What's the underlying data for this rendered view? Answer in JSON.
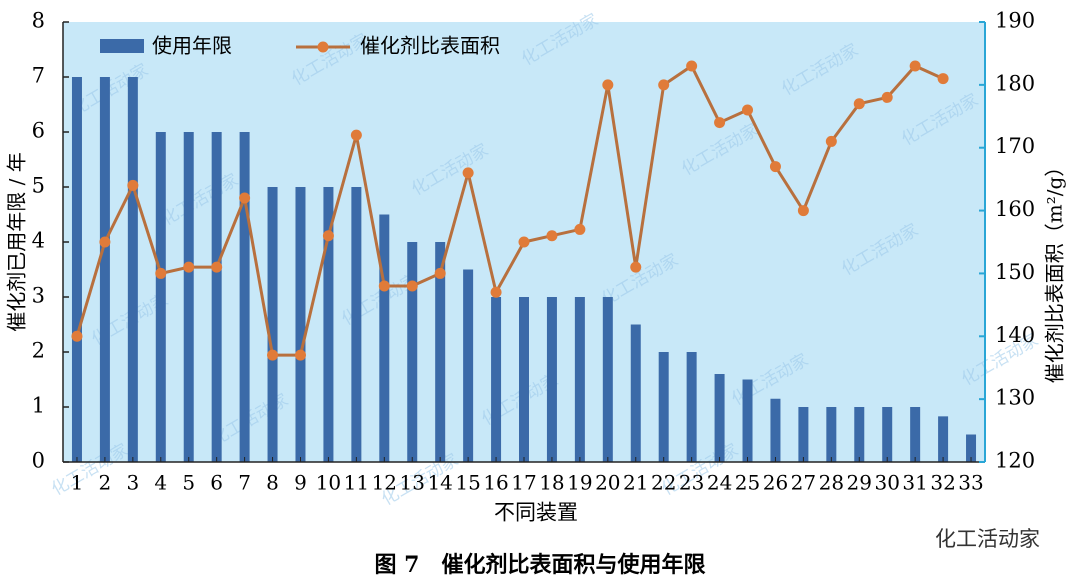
{
  "chart_data": {
    "type": "bar_line",
    "caption": "图 7　催化剂比表面积与使用年限",
    "x_label": "不同装置",
    "y_label": "催化剂已用年限 / 年",
    "y2_label": "催化剂比表面积（m²/g）",
    "categories": [
      "1",
      "2",
      "3",
      "4",
      "5",
      "6",
      "7",
      "8",
      "9",
      "10",
      "11",
      "12",
      "13",
      "14",
      "15",
      "16",
      "17",
      "18",
      "19",
      "20",
      "21",
      "22",
      "23",
      "24",
      "25",
      "26",
      "27",
      "28",
      "29",
      "30",
      "31",
      "32",
      "33"
    ],
    "series": [
      {
        "name": "使用年限",
        "type": "bar",
        "color": "#3b6aa8",
        "values": [
          7,
          7,
          7,
          6,
          6,
          6,
          6,
          5,
          5,
          5,
          5,
          4.5,
          4,
          4,
          3.5,
          3,
          3,
          3,
          3,
          3,
          2.5,
          2,
          2,
          1.6,
          1.5,
          1.15,
          1,
          1,
          1,
          1,
          1,
          0.83,
          0.5
        ]
      },
      {
        "name": "催化剂比表面积",
        "type": "line",
        "axis": "y2",
        "color": "#b8703e",
        "marker_color": "#e07b39",
        "values": [
          140,
          155,
          164,
          150,
          151,
          151,
          162,
          137,
          137,
          156,
          172,
          148,
          148,
          150,
          166,
          147,
          155,
          156,
          157,
          180,
          151,
          180,
          183,
          174,
          176,
          167,
          160,
          171,
          177,
          178,
          183,
          181,
          null
        ]
      }
    ],
    "ylim": [
      0,
      8
    ],
    "yticks": [
      0,
      1,
      2,
      3,
      4,
      5,
      6,
      7,
      8
    ],
    "y2lim": [
      120,
      190
    ],
    "y2ticks": [
      120,
      130,
      140,
      150,
      160,
      170,
      180,
      190
    ],
    "legend": "top-left",
    "watermark": "化工活动家"
  }
}
